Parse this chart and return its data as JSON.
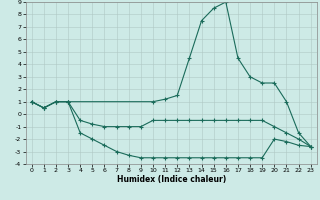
{
  "xlabel": "Humidex (Indice chaleur)",
  "background_color": "#cdeae6",
  "grid_color": "#b0c8c4",
  "line_color": "#1a6b5a",
  "xlim": [
    -0.5,
    23.5
  ],
  "ylim": [
    -4,
    9
  ],
  "xticks": [
    0,
    1,
    2,
    3,
    4,
    5,
    6,
    7,
    8,
    9,
    10,
    11,
    12,
    13,
    14,
    15,
    16,
    17,
    18,
    19,
    20,
    21,
    22,
    23
  ],
  "yticks": [
    -4,
    -3,
    -2,
    -1,
    0,
    1,
    2,
    3,
    4,
    5,
    6,
    7,
    8,
    9
  ],
  "line1_x": [
    0,
    1,
    2,
    3,
    10,
    11,
    12,
    13,
    14,
    15,
    16,
    17,
    18,
    19,
    20,
    21,
    22,
    23
  ],
  "line1_y": [
    1,
    0.5,
    1,
    1,
    1,
    1.2,
    1.5,
    4.5,
    7.5,
    8.5,
    9,
    4.5,
    3,
    2.5,
    2.5,
    1,
    -1.5,
    -2.6
  ],
  "line2_x": [
    0,
    1,
    2,
    3,
    4,
    5,
    6,
    7,
    8,
    9,
    10,
    11,
    12,
    13,
    14,
    15,
    16,
    17,
    18,
    19,
    20,
    21,
    22,
    23
  ],
  "line2_y": [
    1,
    0.5,
    1,
    1,
    -0.5,
    -0.8,
    -1,
    -1,
    -1,
    -1,
    -0.5,
    -0.5,
    -0.5,
    -0.5,
    -0.5,
    -0.5,
    -0.5,
    -0.5,
    -0.5,
    -0.5,
    -1,
    -1.5,
    -2,
    -2.6
  ],
  "line3_x": [
    0,
    1,
    2,
    3,
    4,
    5,
    6,
    7,
    8,
    9,
    10,
    11,
    12,
    13,
    14,
    15,
    16,
    17,
    18,
    19,
    20,
    21,
    22,
    23
  ],
  "line3_y": [
    1,
    0.5,
    1,
    1,
    -1.5,
    -2,
    -2.5,
    -3,
    -3.3,
    -3.5,
    -3.5,
    -3.5,
    -3.5,
    -3.5,
    -3.5,
    -3.5,
    -3.5,
    -3.5,
    -3.5,
    -3.5,
    -2,
    -2.2,
    -2.5,
    -2.6
  ]
}
